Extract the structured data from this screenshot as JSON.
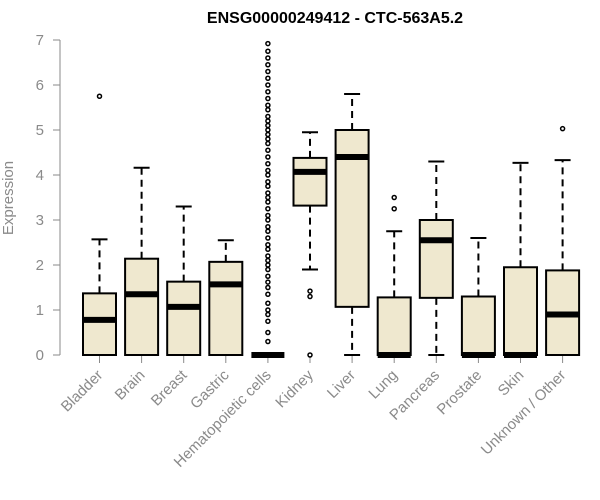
{
  "chart_data": {
    "type": "boxplot",
    "title": "ENSG00000249412 - CTC-563A5.2",
    "ylabel": "Expression",
    "xlabel": "",
    "ylim": [
      0,
      7
    ],
    "yticks": [
      0,
      1,
      2,
      3,
      4,
      5,
      6,
      7
    ],
    "box_fill": "#efe8cf",
    "box_stroke": "#000000",
    "axis_color": "#8a8a8a",
    "categories": [
      "Bladder",
      "Brain",
      "Breast",
      "Gastric",
      "Hematopoietic cells",
      "Kidney",
      "Liver",
      "Lung",
      "Pancreas",
      "Prostate",
      "Skin",
      "Unknown / Other"
    ],
    "boxes": [
      {
        "name": "Bladder",
        "min": 0,
        "q1": 0,
        "median": 0.78,
        "q3": 1.37,
        "max": 2.57,
        "outliers": [
          5.75
        ]
      },
      {
        "name": "Brain",
        "min": 0,
        "q1": 0,
        "median": 1.35,
        "q3": 2.14,
        "max": 4.16,
        "outliers": []
      },
      {
        "name": "Breast",
        "min": 0,
        "q1": 0,
        "median": 1.07,
        "q3": 1.63,
        "max": 3.3,
        "outliers": []
      },
      {
        "name": "Gastric",
        "min": 0,
        "q1": 0,
        "median": 1.57,
        "q3": 2.07,
        "max": 2.55,
        "outliers": []
      },
      {
        "name": "Hematopoietic cells",
        "min": 0,
        "q1": 0,
        "median": 0,
        "q3": 0,
        "max": 0,
        "outliers": [
          0.3,
          0.5,
          0.75,
          0.9,
          1.0,
          1.15,
          1.35,
          1.5,
          1.62,
          1.75,
          1.9,
          2.0,
          2.1,
          2.2,
          2.35,
          2.45,
          2.6,
          2.75,
          2.85,
          3.0,
          3.1,
          3.25,
          3.4,
          3.5,
          3.6,
          3.75,
          3.85,
          4.0,
          4.1,
          4.25,
          4.4,
          4.55,
          4.7,
          4.8,
          4.9,
          5.0,
          5.1,
          5.2,
          5.3,
          5.45,
          5.55,
          5.7,
          5.85,
          6.0,
          6.15,
          6.3,
          6.45,
          6.6,
          6.75,
          6.92
        ]
      },
      {
        "name": "Kidney",
        "min": 1.9,
        "q1": 3.32,
        "median": 4.07,
        "q3": 4.38,
        "max": 4.95,
        "outliers": [
          1.3,
          1.42,
          0
        ]
      },
      {
        "name": "Liver",
        "min": 0,
        "q1": 1.07,
        "median": 4.4,
        "q3": 5.0,
        "max": 5.8,
        "outliers": []
      },
      {
        "name": "Lung",
        "min": 0,
        "q1": 0,
        "median": 0,
        "q3": 1.28,
        "max": 2.75,
        "outliers": [
          3.25,
          3.5
        ]
      },
      {
        "name": "Pancreas",
        "min": 0,
        "q1": 1.27,
        "median": 2.55,
        "q3": 3.0,
        "max": 4.3,
        "outliers": []
      },
      {
        "name": "Prostate",
        "min": 0,
        "q1": 0,
        "median": 0,
        "q3": 1.3,
        "max": 2.6,
        "outliers": []
      },
      {
        "name": "Skin",
        "min": 0,
        "q1": 0,
        "median": 0,
        "q3": 1.95,
        "max": 4.27,
        "outliers": []
      },
      {
        "name": "Unknown / Other",
        "min": 0,
        "q1": 0,
        "median": 0.9,
        "q3": 1.88,
        "max": 4.33,
        "outliers": [
          5.03
        ]
      }
    ]
  }
}
